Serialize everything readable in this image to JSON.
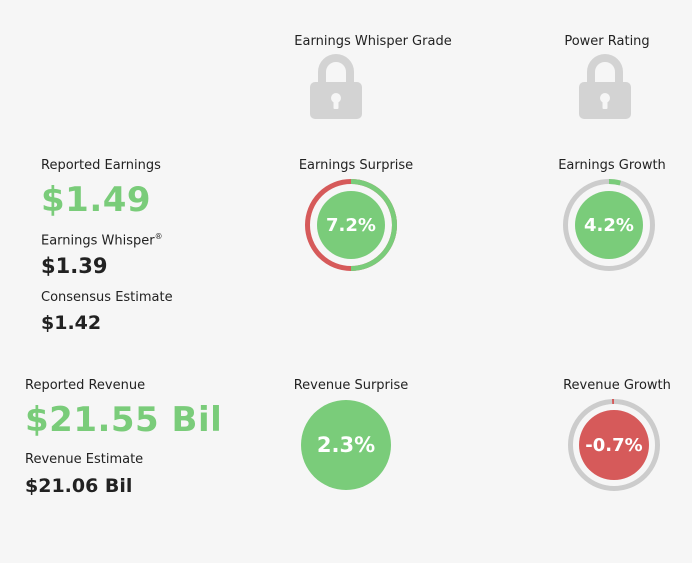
{
  "grade": {
    "whisper_grade_label": "Earnings Whisper Grade",
    "power_rating_label": "Power Rating",
    "lock_icon": "lock-icon"
  },
  "earnings": {
    "reported_label": "Reported Earnings",
    "reported_value": "$1.49",
    "whisper_label": "Earnings Whisper",
    "whisper_mark": "®",
    "whisper_value": "$1.39",
    "consensus_label": "Consensus Estimate",
    "consensus_value": "$1.42",
    "surprise_label": "Earnings Surprise",
    "surprise_value": "7.2%",
    "surprise_fraction": 0.5,
    "growth_label": "Earnings Growth",
    "growth_value": "4.2%",
    "growth_fraction": 0.042
  },
  "revenue": {
    "reported_label": "Reported Revenue",
    "reported_value": "$21.55 Bil",
    "estimate_label": "Revenue Estimate",
    "estimate_value": "$21.06 Bil",
    "surprise_label": "Revenue Surprise",
    "surprise_value": "2.3%",
    "growth_label": "Revenue Growth",
    "growth_value": "-0.7%",
    "growth_fraction": 0.007
  },
  "colors": {
    "positive": "#7acc7a",
    "negative": "#d65a5a",
    "ring_track": "#cccccc",
    "lock": "#d3d3d3"
  }
}
